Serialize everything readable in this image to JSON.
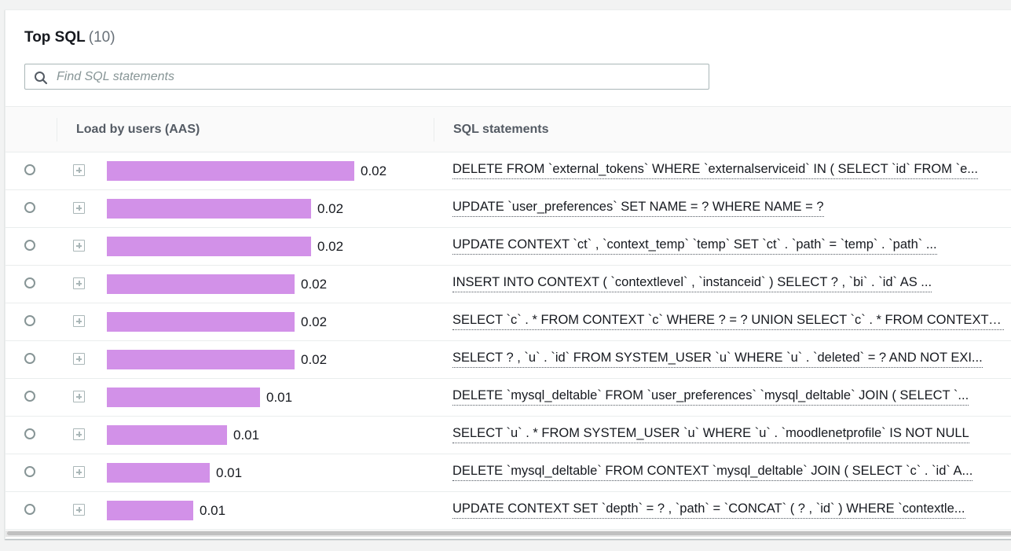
{
  "header": {
    "title": "Top SQL",
    "count": "(10)"
  },
  "search": {
    "placeholder": "Find SQL statements",
    "icon": "search-icon"
  },
  "columns": {
    "load": "Load by users (AAS)",
    "sql": "SQL statements"
  },
  "colors": {
    "bar": "#d291e8",
    "dotted_underline": "#545b64"
  },
  "rows": [
    {
      "aas": 0.02,
      "value": "0.02",
      "sql": "DELETE FROM `external_tokens` WHERE `externalserviceid` IN ( SELECT `id` FROM `e..."
    },
    {
      "aas": 0.0165,
      "value": "0.02",
      "sql": "UPDATE `user_preferences` SET NAME = ? WHERE NAME = ?"
    },
    {
      "aas": 0.0165,
      "value": "0.02",
      "sql": "UPDATE CONTEXT `ct` , `context_temp` `temp` SET `ct` . `path` = `temp` . `path` ..."
    },
    {
      "aas": 0.0152,
      "value": "0.02",
      "sql": "INSERT INTO CONTEXT ( `contextlevel` , `instanceid` ) SELECT ? , `bi` . `id` AS ..."
    },
    {
      "aas": 0.0152,
      "value": "0.02",
      "sql": "SELECT `c` . * FROM CONTEXT `c` WHERE ? = ? UNION SELECT `c` . * FROM CONTEXT `c..."
    },
    {
      "aas": 0.0152,
      "value": "0.02",
      "sql": "SELECT ? , `u` . `id` FROM SYSTEM_USER `u` WHERE `u` . `deleted` = ? AND NOT EXI..."
    },
    {
      "aas": 0.0124,
      "value": "0.01",
      "sql": "DELETE `mysql_deltable` FROM `user_preferences` `mysql_deltable` JOIN ( SELECT `..."
    },
    {
      "aas": 0.0097,
      "value": "0.01",
      "sql": "SELECT `u` . * FROM SYSTEM_USER `u` WHERE `u` . `moodlenetprofile` IS NOT NULL"
    },
    {
      "aas": 0.0083,
      "value": "0.01",
      "sql": "DELETE `mysql_deltable` FROM CONTEXT `mysql_deltable` JOIN ( SELECT `c` . `id` A..."
    },
    {
      "aas": 0.007,
      "value": "0.01",
      "sql": "UPDATE CONTEXT SET `depth` = ? , `path` = `CONCAT` ( ? , `id` ) WHERE `contextle..."
    }
  ]
}
